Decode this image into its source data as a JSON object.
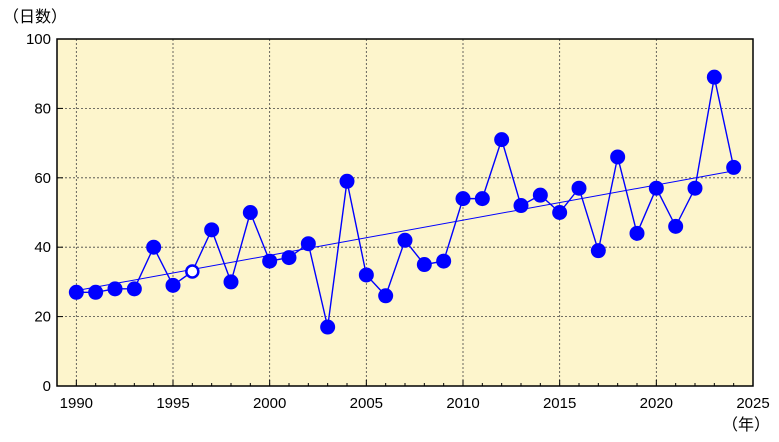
{
  "chart_data": {
    "type": "scatter",
    "ylabel": "（日数）",
    "xlabel": "（年）",
    "xlim": [
      1989,
      2025
    ],
    "ylim": [
      0,
      100
    ],
    "xticks": [
      "1990",
      "1995",
      "2000",
      "2005",
      "2010",
      "2015",
      "2020",
      "2025"
    ],
    "yticks": [
      "100",
      "80",
      "60",
      "40",
      "20",
      "0"
    ],
    "xtick_values": [
      1990,
      1995,
      2000,
      2005,
      2010,
      2015,
      2020,
      2025
    ],
    "ytick_values": [
      100,
      80,
      60,
      40,
      20,
      0
    ],
    "grid": true,
    "plot_background": "#fdf5cc",
    "series_color": "#0000ff",
    "x": [
      1990,
      1991,
      1992,
      1993,
      1994,
      1995,
      1996,
      1997,
      1998,
      1999,
      2000,
      2001,
      2002,
      2003,
      2004,
      2005,
      2006,
      2007,
      2008,
      2009,
      2010,
      2011,
      2012,
      2013,
      2014,
      2015,
      2016,
      2017,
      2018,
      2019,
      2020,
      2021,
      2022,
      2023,
      2024
    ],
    "y": [
      27,
      27,
      28,
      28,
      40,
      29,
      33,
      45,
      30,
      50,
      36,
      37,
      41,
      17,
      59,
      32,
      26,
      42,
      35,
      36,
      54,
      54,
      71,
      52,
      55,
      50,
      57,
      39,
      66,
      44,
      57,
      46,
      57,
      89,
      63
    ],
    "open_marker_years": [
      1996
    ],
    "trend": {
      "x": [
        1990,
        2024
      ],
      "y": [
        27.5,
        62.0
      ]
    }
  }
}
